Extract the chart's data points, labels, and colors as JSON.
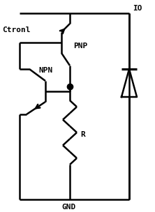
{
  "bg_color": "#ffffff",
  "line_color": "#000000",
  "line_width": 1.8,
  "label_ctronl": "Ctronl",
  "label_io": "IO",
  "label_pnp": "PNP",
  "label_npn": "NPN",
  "label_r": "R",
  "label_gnd": "GND",
  "figsize": [
    2.22,
    3.04
  ],
  "dpi": 100
}
